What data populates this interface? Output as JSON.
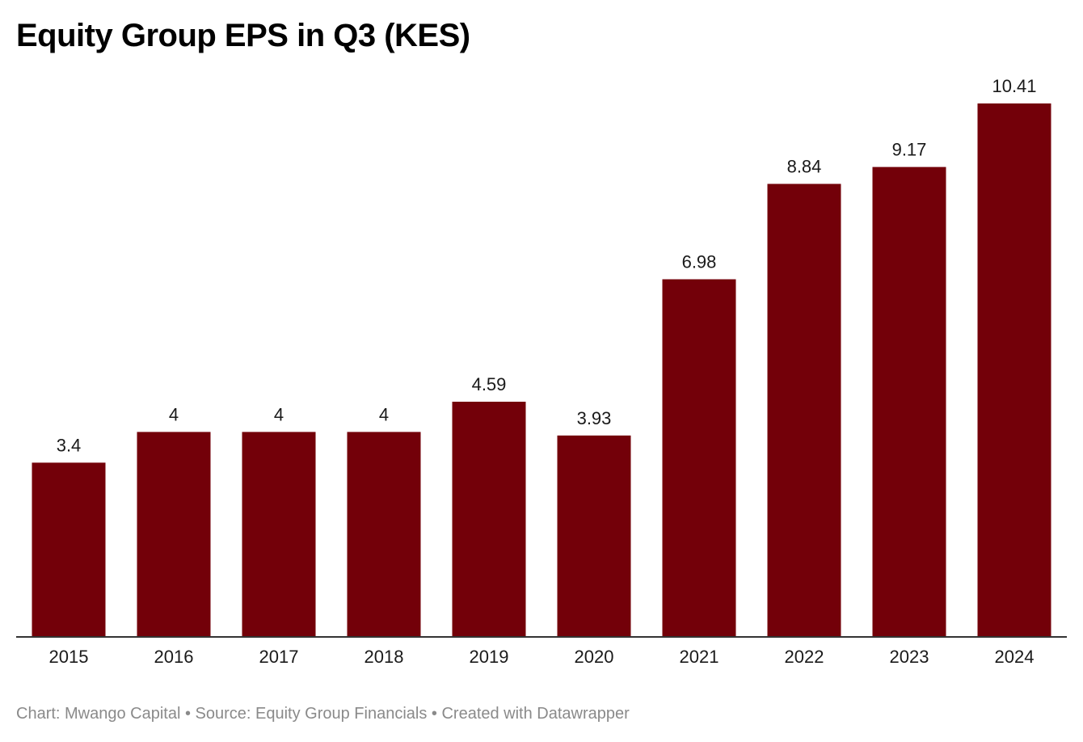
{
  "chart_data": {
    "type": "bar",
    "title": "Equity Group EPS in Q3 (KES)",
    "categories": [
      "2015",
      "2016",
      "2017",
      "2018",
      "2019",
      "2020",
      "2021",
      "2022",
      "2023",
      "2024"
    ],
    "values": [
      3.4,
      4,
      4,
      4,
      4.59,
      3.93,
      6.98,
      8.84,
      9.17,
      10.41
    ],
    "value_labels": [
      "3.4",
      "4",
      "4",
      "4",
      "4.59",
      "3.93",
      "6.98",
      "8.84",
      "9.17",
      "10.41"
    ],
    "xlabel": "",
    "ylabel": "",
    "ylim": [
      0,
      10.41
    ],
    "grid": false,
    "legend": "none",
    "bar_color": "#730009"
  },
  "footer": {
    "text": "Chart: Mwango Capital • Source: Equity Group Financials • Created with Datawrapper"
  }
}
